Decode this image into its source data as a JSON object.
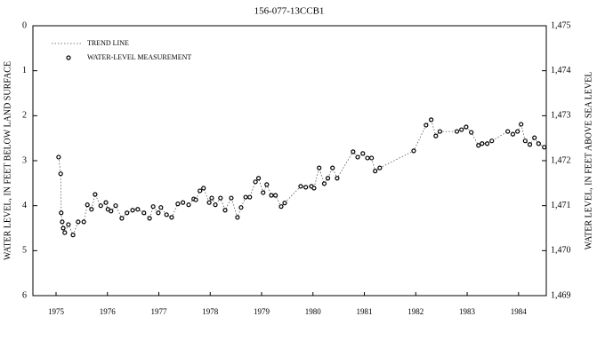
{
  "chart_data": {
    "type": "scatter",
    "title": "156-077-13CCB1",
    "ylabel": "WATER LEVEL, IN FEET BELOW LAND SURFACE",
    "y2label": "WATER LEVEL, IN FEET ABOVE SEA LEVEL",
    "series": [
      {
        "name": "TREND LINE",
        "style": "dotted",
        "color": "#555555"
      },
      {
        "name": "WATER-LEVEL MEASUREMENT",
        "style": "points",
        "color": "#000000"
      }
    ],
    "x": [
      1975.05,
      1975.09,
      1975.1,
      1975.12,
      1975.14,
      1975.17,
      1975.24,
      1975.33,
      1975.43,
      1975.54,
      1975.61,
      1975.69,
      1975.76,
      1975.87,
      1975.97,
      1976.01,
      1976.07,
      1976.16,
      1976.28,
      1976.38,
      1976.49,
      1976.59,
      1976.71,
      1976.82,
      1976.89,
      1976.99,
      1977.04,
      1977.15,
      1977.25,
      1977.37,
      1977.47,
      1977.58,
      1977.68,
      1977.72,
      1977.8,
      1977.87,
      1977.98,
      1978.03,
      1978.1,
      1978.2,
      1978.29,
      1978.41,
      1978.53,
      1978.6,
      1978.69,
      1978.77,
      1978.88,
      1978.94,
      1979.03,
      1979.1,
      1979.19,
      1979.27,
      1979.38,
      1979.45,
      1979.76,
      1979.86,
      1979.97,
      1980.02,
      1980.12,
      1980.22,
      1980.29,
      1980.38,
      1980.47,
      1980.78,
      1980.87,
      1980.97,
      1981.06,
      1981.14,
      1981.21,
      1981.3,
      1981.96,
      1982.2,
      1982.3,
      1982.39,
      1982.47,
      1982.8,
      1982.89,
      1982.98,
      1983.08,
      1983.22,
      1983.29,
      1983.39,
      1983.48,
      1983.79,
      1983.89,
      1983.98,
      1984.05,
      1984.13,
      1984.22,
      1984.31,
      1984.39,
      1984.5
    ],
    "values": [
      2.92,
      3.29,
      4.16,
      4.36,
      4.5,
      4.6,
      4.42,
      4.65,
      4.36,
      4.36,
      3.98,
      4.08,
      3.75,
      4.0,
      3.93,
      4.08,
      4.12,
      4.0,
      4.28,
      4.16,
      4.1,
      4.08,
      4.16,
      4.28,
      4.02,
      4.16,
      4.04,
      4.2,
      4.26,
      3.96,
      3.93,
      3.98,
      3.85,
      3.87,
      3.67,
      3.61,
      3.93,
      3.83,
      3.98,
      3.83,
      4.1,
      3.83,
      4.26,
      4.04,
      3.81,
      3.81,
      3.47,
      3.39,
      3.71,
      3.53,
      3.77,
      3.77,
      4.02,
      3.94,
      3.57,
      3.59,
      3.57,
      3.61,
      3.16,
      3.51,
      3.39,
      3.16,
      3.39,
      2.8,
      2.92,
      2.84,
      2.94,
      2.94,
      3.23,
      3.16,
      2.78,
      2.21,
      2.09,
      2.45,
      2.35,
      2.35,
      2.31,
      2.25,
      2.37,
      2.66,
      2.62,
      2.62,
      2.56,
      2.35,
      2.41,
      2.35,
      2.19,
      2.56,
      2.64,
      2.49,
      2.62,
      2.7
    ],
    "xlim": [
      1974.55,
      1984.54
    ],
    "xticks": [
      1975,
      1976,
      1977,
      1978,
      1979,
      1980,
      1981,
      1982,
      1983,
      1984
    ],
    "ylim": [
      0,
      6
    ],
    "yticks": [
      0,
      1,
      2,
      3,
      4,
      5,
      6
    ],
    "y2lim": [
      1475,
      1469
    ],
    "y2ticks": [
      {
        "value": 1475,
        "label": "1,475"
      },
      {
        "value": 1474,
        "label": "1,474"
      },
      {
        "value": 1473,
        "label": "1,473"
      },
      {
        "value": 1472,
        "label": "1,472"
      },
      {
        "value": 1471,
        "label": "1,471"
      },
      {
        "value": 1470,
        "label": "1,470"
      },
      {
        "value": 1469,
        "label": "1,469"
      }
    ]
  }
}
